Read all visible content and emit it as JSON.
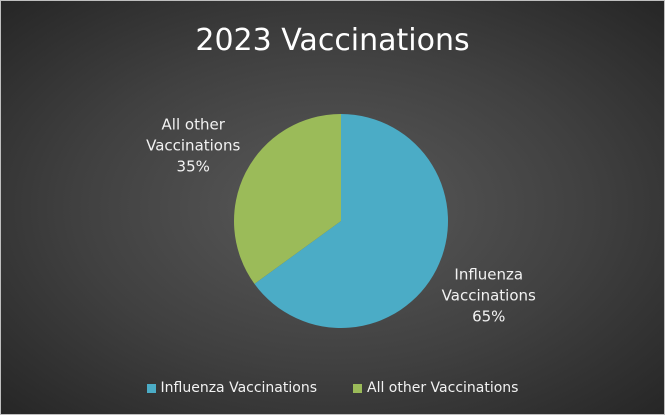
{
  "chart_data": {
    "type": "pie",
    "title": "2023 Vaccinations",
    "categories": [
      "Influenza Vaccinations",
      "All other Vaccinations"
    ],
    "values": [
      65,
      35
    ],
    "value_labels": [
      "65%",
      "35%"
    ],
    "colors": [
      "#4bacc6",
      "#9bbb59"
    ],
    "legend": "bottom"
  }
}
